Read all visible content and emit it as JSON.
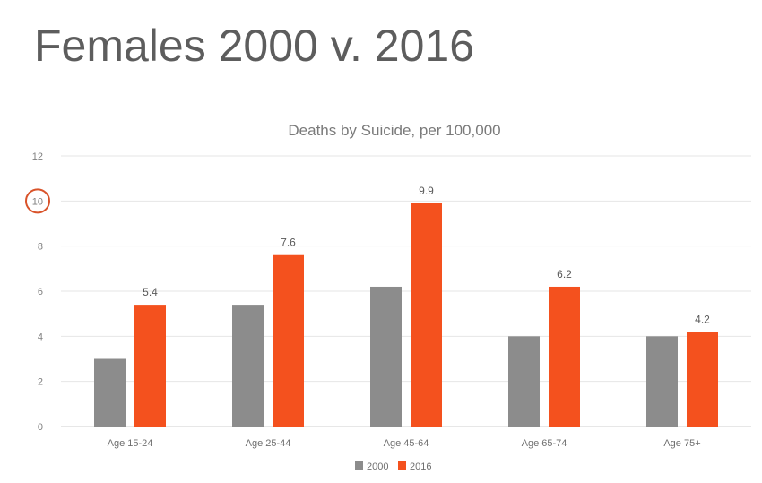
{
  "slide": {
    "title": "Females 2000 v. 2016"
  },
  "chart_data": {
    "type": "bar",
    "title": "Deaths by Suicide, per 100,000",
    "xlabel": "",
    "ylabel": "",
    "categories": [
      "Age 15-24",
      "Age 25-44",
      "Age 45-64",
      "Age 65-74",
      "Age 75+"
    ],
    "series": [
      {
        "name": "2000",
        "values": [
          3.0,
          5.4,
          6.2,
          4.0,
          4.0
        ],
        "color": "#8c8c8c",
        "show_labels": false
      },
      {
        "name": "2016",
        "values": [
          5.4,
          7.6,
          9.9,
          6.2,
          4.2
        ],
        "color": "#f4511e",
        "show_labels": true
      }
    ],
    "ylim": [
      0,
      12
    ],
    "yticks": [
      0,
      2,
      4,
      6,
      8,
      10,
      12
    ],
    "highlighted_tick": 10,
    "highlight_color": "#d9532a",
    "grid": true,
    "legend": "bottom"
  }
}
